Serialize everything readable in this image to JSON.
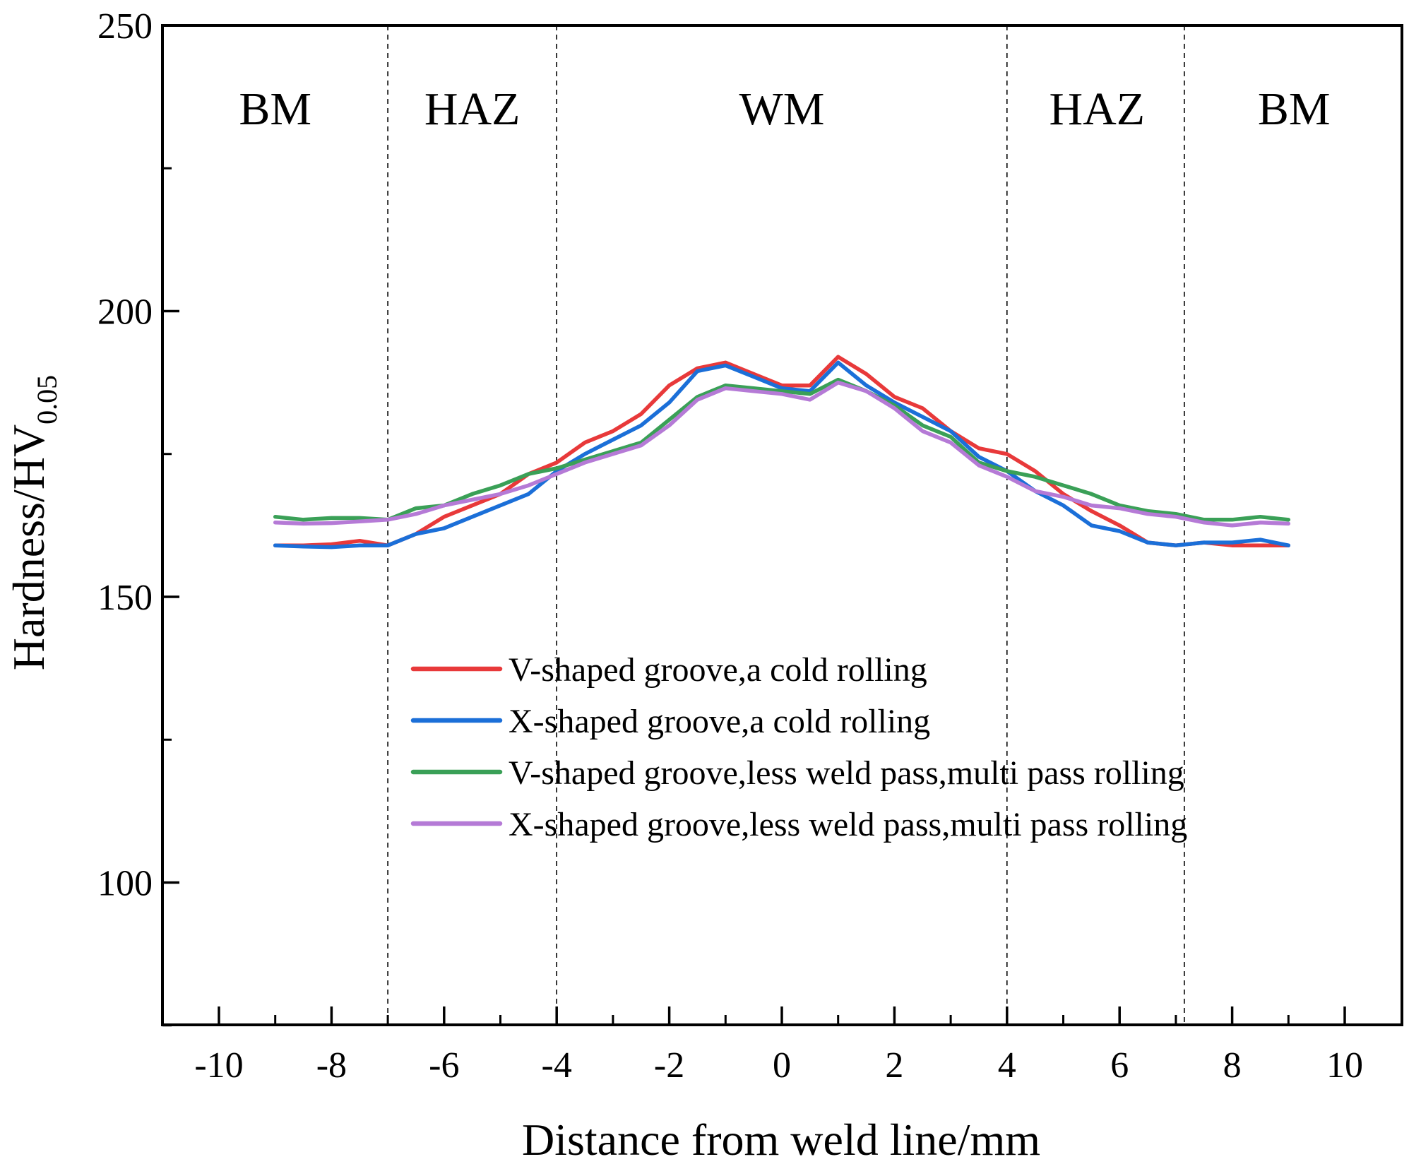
{
  "chart_data": {
    "type": "line",
    "xlabel": "Distance from weld line/mm",
    "ylabel": {
      "main": "Hardness/HV",
      "subscript": "0.05"
    },
    "xlim": [
      -11,
      11
    ],
    "ylim": [
      75,
      250
    ],
    "x_ticks": [
      -10,
      -8,
      -6,
      -4,
      -2,
      0,
      2,
      4,
      6,
      8,
      10
    ],
    "x_tick_labels": [
      "-10",
      "-8",
      "-6",
      "-4",
      "-2",
      "0",
      "2",
      "4",
      "6",
      "8",
      "10"
    ],
    "y_ticks": [
      100,
      150,
      200,
      250
    ],
    "y_tick_labels": [
      "100",
      "150",
      "200",
      "250"
    ],
    "y_minor_ticks": [
      75,
      125,
      175,
      225
    ],
    "grid": false,
    "legend_position": "center",
    "region_boundaries": [
      -7,
      -4,
      4,
      7.15
    ],
    "regions": [
      {
        "label": "BM",
        "x": -9
      },
      {
        "label": "HAZ",
        "x": -5.5
      },
      {
        "label": "WM",
        "x": 0
      },
      {
        "label": "HAZ",
        "x": 5.6
      },
      {
        "label": "BM",
        "x": 9.1
      }
    ],
    "x": [
      -9,
      -8.5,
      -8,
      -7.5,
      -7,
      -6.5,
      -6,
      -5.5,
      -5,
      -4.5,
      -4,
      -3.5,
      -3,
      -2.5,
      -2,
      -1.5,
      -1,
      -0.5,
      0,
      0.5,
      1,
      1.5,
      2,
      2.5,
      3,
      3.5,
      4,
      4.5,
      5,
      5.5,
      6,
      6.5,
      7,
      7.5,
      8,
      8.5,
      9
    ],
    "series": [
      {
        "name": "V-shaped groove,a cold rolling",
        "color": "#e8393a",
        "values": [
          159,
          159,
          159.2,
          159.8,
          159,
          161,
          164,
          166,
          168,
          171.5,
          173.5,
          177,
          179,
          182,
          187,
          190,
          191,
          189,
          187,
          187,
          192,
          189,
          185,
          183,
          179,
          176,
          175,
          172,
          168,
          165,
          162.5,
          159.5,
          159,
          159.5,
          159,
          159,
          159
        ]
      },
      {
        "name": "X-shaped groove,a cold rolling",
        "color": "#1b6fd8",
        "values": [
          159,
          158.8,
          158.7,
          159,
          159,
          161,
          162,
          164,
          166,
          168,
          172,
          175,
          177.5,
          180,
          184,
          189.5,
          190.5,
          188.5,
          186.5,
          186,
          191,
          187,
          184,
          181.5,
          179,
          174.5,
          172,
          168.5,
          166,
          162.5,
          161.5,
          159.5,
          159,
          159.5,
          159.5,
          160,
          159
        ]
      },
      {
        "name": "V-shaped groove,less weld pass,multi pass rolling",
        "color": "#3aa057",
        "values": [
          164,
          163.5,
          163.8,
          163.8,
          163.5,
          165.5,
          166,
          168,
          169.5,
          171.5,
          172.5,
          174,
          175.5,
          177,
          181,
          185,
          187,
          186.5,
          186,
          185.5,
          188,
          186,
          183.5,
          180,
          178,
          173.5,
          172,
          171,
          169.5,
          168,
          166,
          165,
          164.5,
          163.5,
          163.5,
          164,
          163.5
        ]
      },
      {
        "name": "X-shaped groove,less weld pass,multi pass rolling",
        "color": "#b57ad6",
        "values": [
          163,
          162.8,
          162.9,
          163.2,
          163.5,
          164.5,
          166,
          167,
          168,
          169.5,
          171.5,
          173.5,
          175,
          176.5,
          180,
          184.5,
          186.5,
          186,
          185.5,
          184.5,
          187.5,
          186,
          183,
          179,
          177,
          173,
          171,
          168.5,
          167.5,
          166,
          165.5,
          164.5,
          164,
          163,
          162.5,
          163,
          162.8
        ]
      }
    ]
  }
}
